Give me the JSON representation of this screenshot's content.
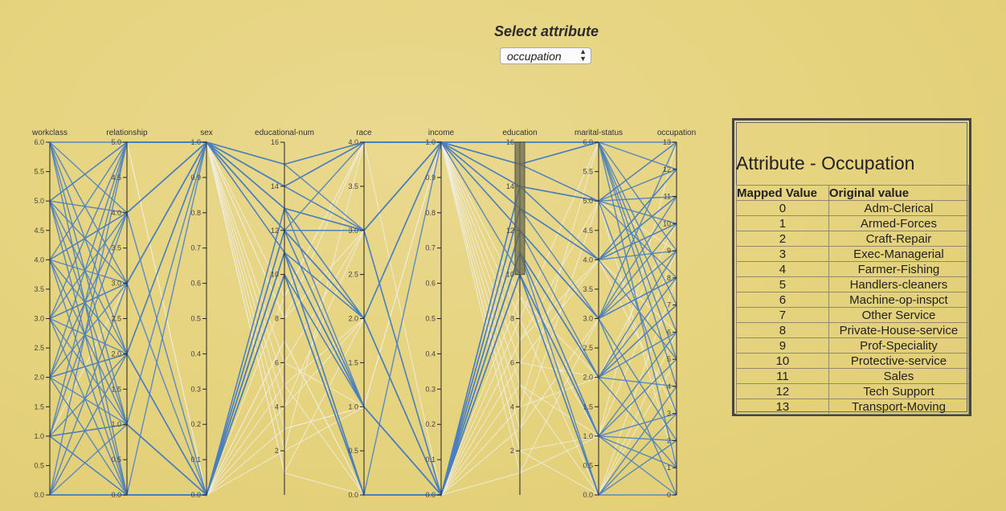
{
  "header": {
    "title": "Select attribute",
    "select_value": "occupation"
  },
  "colors": {
    "active_line": "#4a7fbf",
    "inactive_line": "#f0efe6",
    "axis": "#222222",
    "brush": "#6b6b52"
  },
  "mapping_table": {
    "heading": "Attribute - Occupation",
    "col_mapped": "Mapped Value",
    "col_original": "Original value",
    "rows": [
      {
        "mapped": "0",
        "original": "Adm-Clerical"
      },
      {
        "mapped": "1",
        "original": "Armed-Forces"
      },
      {
        "mapped": "2",
        "original": "Craft-Repair"
      },
      {
        "mapped": "3",
        "original": "Exec-Managerial"
      },
      {
        "mapped": "4",
        "original": "Farmer-Fishing"
      },
      {
        "mapped": "5",
        "original": "Handlers-cleaners"
      },
      {
        "mapped": "6",
        "original": "Machine-op-inspct"
      },
      {
        "mapped": "7",
        "original": "Other Service"
      },
      {
        "mapped": "8",
        "original": "Private-House-service"
      },
      {
        "mapped": "9",
        "original": "Prof-Speciality"
      },
      {
        "mapped": "10",
        "original": "Protective-service"
      },
      {
        "mapped": "11",
        "original": "Sales"
      },
      {
        "mapped": "12",
        "original": "Tech Support"
      },
      {
        "mapped": "13",
        "original": "Transport-Moving"
      }
    ]
  },
  "chart_data": {
    "type": "parallel-coordinates",
    "axes": [
      {
        "name": "workclass",
        "min": 0,
        "max": 6,
        "ticks": [
          "0.0",
          "0.5",
          "1.0",
          "1.5",
          "2.0",
          "2.5",
          "3.0",
          "3.5",
          "4.0",
          "4.5",
          "5.0",
          "5.5",
          "6.0"
        ]
      },
      {
        "name": "relationship",
        "min": 0,
        "max": 5,
        "ticks": [
          "0.0",
          "0.5",
          "1.0",
          "1.5",
          "2.0",
          "2.5",
          "3.0",
          "3.5",
          "4.0",
          "4.5",
          "5.0"
        ]
      },
      {
        "name": "sex",
        "min": 0,
        "max": 1,
        "ticks": [
          "0.0",
          "0.1",
          "0.2",
          "0.3",
          "0.4",
          "0.5",
          "0.6",
          "0.7",
          "0.8",
          "0.9",
          "1.0"
        ]
      },
      {
        "name": "educational-num",
        "min": 0,
        "max": 16,
        "ticks": [
          "2",
          "4",
          "6",
          "8",
          "10",
          "12",
          "14",
          "16"
        ]
      },
      {
        "name": "race",
        "min": 0,
        "max": 4,
        "ticks": [
          "0.0",
          "0.5",
          "1.0",
          "1.5",
          "2.0",
          "2.5",
          "3.0",
          "3.5",
          "4.0"
        ]
      },
      {
        "name": "income",
        "min": 0,
        "max": 1,
        "ticks": [
          "0.0",
          "0.1",
          "0.2",
          "0.3",
          "0.4",
          "0.5",
          "0.6",
          "0.7",
          "0.8",
          "0.9",
          "1.0"
        ]
      },
      {
        "name": "education",
        "min": 0,
        "max": 16,
        "ticks": [
          "2",
          "4",
          "6",
          "8",
          "10",
          "12",
          "14",
          "16"
        ]
      },
      {
        "name": "marital-status",
        "min": 0,
        "max": 6,
        "ticks": [
          "0.0",
          "0.5",
          "1.0",
          "1.5",
          "2.0",
          "2.5",
          "3.0",
          "3.5",
          "4.0",
          "4.5",
          "5.0",
          "5.5",
          "6.0"
        ]
      },
      {
        "name": "occupation",
        "min": 0,
        "max": 13,
        "ticks": [
          "0",
          "1",
          "2",
          "3",
          "4",
          "5",
          "6",
          "7",
          "8",
          "9",
          "10",
          "11",
          "12",
          "13"
        ]
      }
    ],
    "brush": {
      "axis": "education",
      "range": [
        10,
        16
      ]
    },
    "records": [
      [
        6,
        5,
        1,
        15,
        4,
        1,
        15,
        6,
        13
      ],
      [
        5,
        4,
        1,
        14,
        3,
        1,
        15,
        5,
        12
      ],
      [
        4,
        4,
        1,
        13,
        3,
        0,
        14,
        5,
        11
      ],
      [
        3,
        3,
        1,
        13,
        2,
        0,
        13,
        4,
        10
      ],
      [
        2,
        2,
        0,
        12,
        2,
        0,
        13,
        4,
        9
      ],
      [
        1,
        1,
        0,
        11,
        1,
        0,
        12,
        3,
        8
      ],
      [
        0,
        0,
        0,
        11,
        1,
        0,
        11,
        2,
        7
      ],
      [
        5,
        5,
        1,
        14,
        4,
        1,
        15,
        6,
        12
      ],
      [
        4,
        3,
        1,
        12,
        3,
        0,
        14,
        4,
        10
      ],
      [
        3,
        2,
        0,
        12,
        2,
        0,
        12,
        3,
        9
      ],
      [
        2,
        1,
        0,
        11,
        1,
        0,
        11,
        2,
        6
      ],
      [
        1,
        0,
        0,
        10,
        0,
        0,
        10,
        1,
        5
      ],
      [
        0,
        0,
        0,
        10,
        0,
        0,
        10,
        0,
        4
      ],
      [
        6,
        4,
        1,
        14,
        4,
        1,
        15,
        5,
        13
      ],
      [
        5,
        3,
        1,
        13,
        3,
        1,
        13,
        4,
        11
      ],
      [
        4,
        2,
        1,
        12,
        2,
        0,
        12,
        3,
        8
      ],
      [
        3,
        1,
        0,
        11,
        1,
        0,
        11,
        2,
        7
      ],
      [
        2,
        0,
        0,
        10,
        0,
        0,
        10,
        1,
        3
      ],
      [
        1,
        0,
        0,
        10,
        0,
        0,
        10,
        0,
        2
      ],
      [
        0,
        1,
        0,
        11,
        1,
        0,
        11,
        1,
        1
      ],
      [
        6,
        3,
        1,
        13,
        3,
        1,
        14,
        4,
        12
      ],
      [
        5,
        2,
        1,
        12,
        2,
        1,
        13,
        3,
        10
      ],
      [
        4,
        1,
        0,
        12,
        1,
        0,
        12,
        2,
        9
      ],
      [
        3,
        0,
        0,
        11,
        0,
        0,
        11,
        1,
        6
      ],
      [
        2,
        4,
        1,
        14,
        4,
        1,
        15,
        6,
        5
      ],
      [
        1,
        5,
        1,
        15,
        4,
        1,
        16,
        6,
        4
      ],
      [
        0,
        2,
        0,
        13,
        3,
        0,
        14,
        5,
        3
      ],
      [
        6,
        1,
        1,
        12,
        2,
        1,
        12,
        3,
        11
      ],
      [
        5,
        0,
        0,
        11,
        1,
        0,
        11,
        2,
        8
      ],
      [
        4,
        5,
        1,
        14,
        3,
        1,
        15,
        6,
        7
      ],
      [
        3,
        4,
        1,
        13,
        2,
        1,
        14,
        5,
        13
      ],
      [
        2,
        3,
        0,
        12,
        1,
        0,
        13,
        4,
        12
      ],
      [
        1,
        2,
        0,
        11,
        0,
        0,
        12,
        3,
        0
      ],
      [
        0,
        5,
        1,
        15,
        4,
        1,
        16,
        6,
        1
      ],
      [
        6,
        0,
        0,
        10,
        0,
        0,
        10,
        0,
        0
      ],
      [
        5,
        1,
        0,
        10,
        1,
        0,
        10,
        1,
        2
      ],
      [
        4,
        0,
        0,
        11,
        0,
        0,
        11,
        0,
        3
      ],
      [
        3,
        5,
        1,
        14,
        4,
        1,
        15,
        6,
        9
      ],
      [
        2,
        5,
        1,
        13,
        3,
        1,
        14,
        5,
        10
      ],
      [
        1,
        4,
        1,
        12,
        2,
        0,
        13,
        4,
        11
      ],
      [
        0,
        3,
        1,
        12,
        4,
        1,
        12,
        3,
        13
      ],
      [
        6,
        2,
        0,
        11,
        2,
        0,
        11,
        2,
        4
      ],
      [
        5,
        5,
        1,
        15,
        3,
        1,
        16,
        6,
        6
      ],
      [
        4,
        4,
        0,
        13,
        1,
        0,
        14,
        5,
        8
      ],
      [
        3,
        3,
        1,
        12,
        3,
        1,
        13,
        4,
        5
      ],
      [
        2,
        2,
        1,
        11,
        2,
        1,
        12,
        3,
        2
      ],
      [
        1,
        1,
        0,
        10,
        1,
        0,
        11,
        2,
        1
      ],
      [
        0,
        0,
        1,
        11,
        0,
        1,
        10,
        1,
        0
      ]
    ],
    "background_records": [
      [
        0,
        1,
        1,
        1,
        0,
        1,
        1,
        1,
        9
      ],
      [
        1,
        0,
        1,
        3,
        1,
        1,
        2,
        0,
        6
      ],
      [
        2,
        2,
        0,
        4,
        3,
        0,
        4,
        2,
        7
      ],
      [
        3,
        1,
        1,
        2,
        4,
        1,
        3,
        3,
        8
      ],
      [
        4,
        3,
        0,
        5,
        2,
        0,
        5,
        1,
        2
      ],
      [
        5,
        2,
        1,
        6,
        1,
        1,
        6,
        4,
        3
      ],
      [
        6,
        4,
        0,
        7,
        0,
        0,
        7,
        5,
        1
      ],
      [
        0,
        0,
        1,
        8,
        3,
        1,
        8,
        0,
        5
      ],
      [
        1,
        3,
        0,
        9,
        4,
        0,
        9,
        2,
        4
      ],
      [
        2,
        1,
        1,
        1,
        2,
        1,
        2,
        1,
        0
      ],
      [
        3,
        4,
        0,
        3,
        1,
        0,
        1,
        3,
        11
      ],
      [
        4,
        0,
        1,
        5,
        0,
        1,
        4,
        6,
        12
      ],
      [
        5,
        5,
        0,
        6,
        3,
        0,
        6,
        2,
        10
      ],
      [
        6,
        2,
        1,
        8,
        4,
        1,
        7,
        4,
        6
      ],
      [
        0,
        5,
        0,
        2,
        1,
        0,
        3,
        5,
        9
      ],
      [
        1,
        4,
        1,
        4,
        2,
        1,
        5,
        0,
        8
      ],
      [
        2,
        3,
        0,
        7,
        0,
        0,
        8,
        6,
        7
      ],
      [
        3,
        2,
        1,
        9,
        4,
        1,
        9,
        1,
        13
      ]
    ]
  }
}
